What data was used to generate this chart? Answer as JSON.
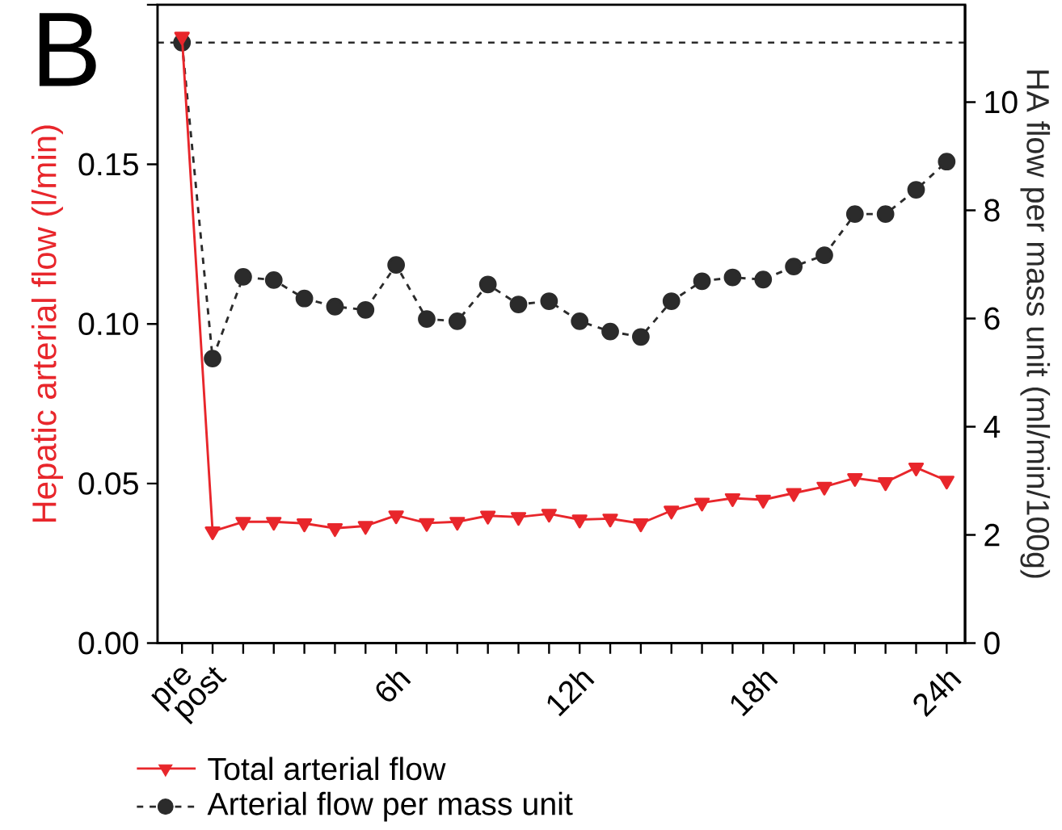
{
  "chart_data": {
    "type": "line",
    "categories": [
      "pre",
      "post",
      null,
      null,
      null,
      null,
      null,
      "6h",
      null,
      null,
      null,
      null,
      null,
      "12h",
      null,
      null,
      null,
      null,
      null,
      "18h",
      null,
      null,
      null,
      null,
      null,
      "24h"
    ],
    "series": [
      {
        "name": "Total arterial flow",
        "color": "#e8262b",
        "marker": "triangle",
        "line_style": "solid",
        "values": [
          0.19,
          0.035,
          0.038,
          0.038,
          0.0375,
          0.036,
          0.0367,
          0.04,
          0.0376,
          0.038,
          0.0399,
          0.0395,
          0.0405,
          0.0387,
          0.039,
          0.0375,
          0.0415,
          0.044,
          0.0454,
          0.0449,
          0.047,
          0.049,
          0.0517,
          0.0504,
          0.055,
          0.0509
        ]
      },
      {
        "name": "Arterial flow per mass unit",
        "color": "#2b2b2b",
        "marker": "circle",
        "line_style": "dashed",
        "axis": "y2",
        "values": [
          11.1,
          5.26,
          6.77,
          6.71,
          6.37,
          6.22,
          6.16,
          6.99,
          5.99,
          5.95,
          6.63,
          6.26,
          6.32,
          5.95,
          5.76,
          5.66,
          6.32,
          6.69,
          6.76,
          6.72,
          6.96,
          7.17,
          7.93,
          7.93,
          8.38,
          8.9
        ]
      }
    ],
    "ylabel": "Hepatic arterial flow (l/min)",
    "y2label": "HA flow per mass unit (ml/min/100g)",
    "ylim": [
      0,
      0.2
    ],
    "yticks": [
      {
        "value": 0,
        "label": "0.00"
      },
      {
        "value": 0.05,
        "label": "0.05"
      },
      {
        "value": 0.1,
        "label": "0.10"
      },
      {
        "value": 0.15,
        "label": "0.15"
      },
      {
        "value": 0.2,
        "label": null
      }
    ],
    "y2lim": [
      0,
      11.8
    ],
    "y2ticks": [
      0,
      2,
      4,
      6,
      8,
      10
    ],
    "ref_lines": [
      {
        "axis": "y2",
        "value": 11.1,
        "line_style": "dashed",
        "color": "#2b2b2b"
      }
    ],
    "annotations": [
      "B"
    ],
    "legend": "bottom",
    "grid": false
  }
}
